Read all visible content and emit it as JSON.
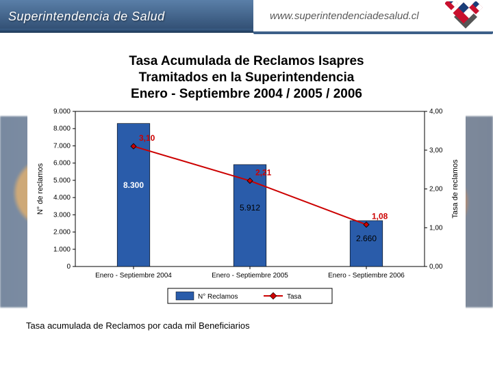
{
  "header": {
    "org_name": "Superintendencia de Salud",
    "url": "www.superintendenciadesalud.cl",
    "logo_colors": {
      "red": "#c8102e",
      "blue": "#1a3e7a",
      "white": "#ffffff",
      "shadow": "#555555"
    }
  },
  "title": {
    "line1": "Tasa Acumulada de Reclamos Isapres",
    "line2": "Tramitados en la Superintendencia",
    "line3": "Enero - Septiembre 2004 / 2005 / 2006"
  },
  "chart": {
    "type": "bar+line",
    "background": "#ffffff",
    "border_color": "#000000",
    "categories": [
      "Enero - Septiembre 2004",
      "Enero - Septiembre 2005",
      "Enero - Septiembre 2006"
    ],
    "bars": {
      "values": [
        8300,
        5912,
        2660
      ],
      "labels": [
        "8.300",
        "5.912",
        "2.660"
      ],
      "color": "#2a5caa",
      "edge_color": "#000000",
      "width_ratio": 0.28
    },
    "line": {
      "values": [
        3.1,
        2.21,
        1.08
      ],
      "labels": [
        "3,10",
        "2,21",
        "1,08"
      ],
      "line_color": "#cc0000",
      "marker_fill": "#cc0000",
      "marker_edge": "#000000",
      "marker_size": 8
    },
    "y_left": {
      "label": "N° de reclamos",
      "min": 0,
      "max": 9000,
      "step": 1000,
      "ticks": [
        "0",
        "1.000",
        "2.000",
        "3.000",
        "4.000",
        "5.000",
        "6.000",
        "7.000",
        "8.000",
        "9.000"
      ]
    },
    "y_right": {
      "label": "Tasa de reclamos",
      "min": 0,
      "max": 4,
      "step": 1,
      "ticks": [
        "0,00",
        "1,00",
        "2,00",
        "3,00",
        "4,00"
      ]
    },
    "legend": {
      "items": [
        {
          "label": "N° Reclamos",
          "type": "bar",
          "color": "#2a5caa"
        },
        {
          "label": "Tasa",
          "type": "line",
          "color": "#cc0000"
        }
      ],
      "border": "#000000"
    },
    "font_size_axis": 10,
    "font_size_legend": 10,
    "font_size_label": 12
  },
  "footnote": "Tasa acumulada de Reclamos por cada mil Beneficiarios"
}
